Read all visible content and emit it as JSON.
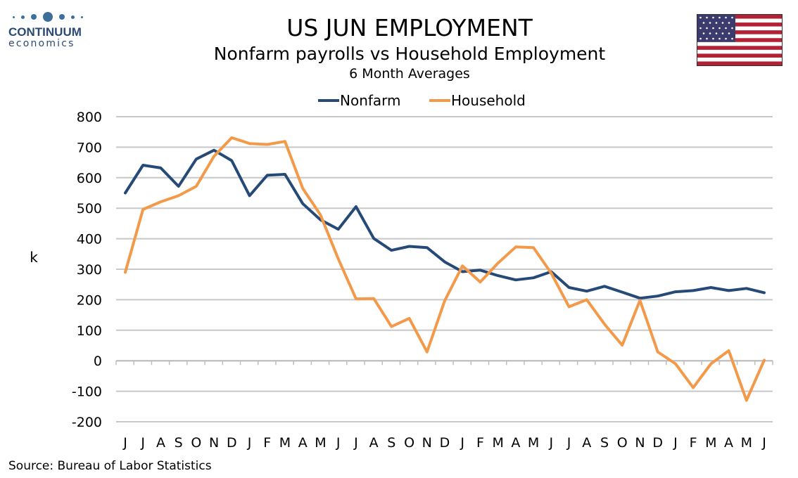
{
  "header": {
    "title": "US JUN EMPLOYMENT",
    "subtitle": "Nonfarm payrolls vs Household Employment",
    "subtitle2": "6 Month Averages"
  },
  "logo": {
    "line1": "CONTINUUM",
    "line2": "economics",
    "color": "#2b4a72"
  },
  "flag": {
    "icon": "us-flag-icon"
  },
  "footer": {
    "source": "Source: Bureau of Labor Statistics"
  },
  "chart_data": {
    "type": "line",
    "ylabel": "k",
    "ylim": [
      -200,
      800
    ],
    "yticks": [
      -200,
      -100,
      0,
      100,
      200,
      300,
      400,
      500,
      600,
      700,
      800
    ],
    "grid": true,
    "legend_position": "top-center",
    "categories": [
      "J",
      "J",
      "A",
      "S",
      "O",
      "N",
      "D",
      "J",
      "F",
      "M",
      "A",
      "M",
      "J",
      "J",
      "A",
      "S",
      "O",
      "N",
      "D",
      "J",
      "F",
      "M",
      "A",
      "M",
      "J",
      "J",
      "A",
      "S",
      "O",
      "N",
      "D",
      "J",
      "F",
      "M",
      "A",
      "M",
      "J"
    ],
    "series": [
      {
        "name": "Nonfarm",
        "color": "#264a78",
        "values": [
          550,
          641,
          632,
          572,
          661,
          690,
          656,
          541,
          608,
          611,
          515,
          462,
          431,
          505,
          401,
          362,
          375,
          371,
          324,
          292,
          297,
          279,
          265,
          272,
          292,
          240,
          228,
          244,
          225,
          205,
          212,
          226,
          230,
          240,
          230,
          237,
          223
        ]
      },
      {
        "name": "Household",
        "color": "#f29a4a",
        "values": [
          290,
          496,
          521,
          541,
          572,
          670,
          731,
          712,
          709,
          719,
          565,
          478,
          334,
          203,
          204,
          112,
          139,
          29,
          197,
          311,
          258,
          320,
          373,
          371,
          287,
          177,
          200,
          120,
          51,
          198,
          29,
          -10,
          -88,
          -10,
          33,
          -130,
          2
        ]
      }
    ]
  }
}
